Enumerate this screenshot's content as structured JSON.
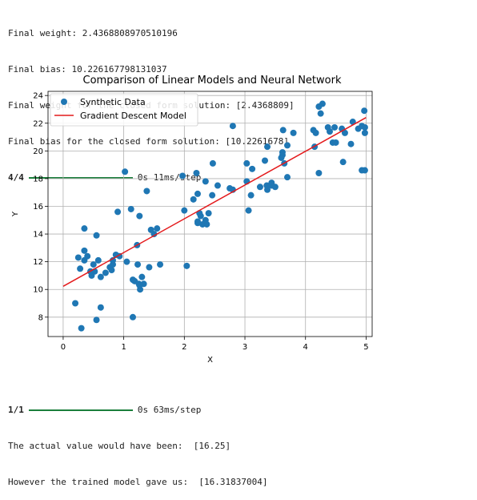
{
  "output_top": {
    "lines": [
      "Final weight: 2.4368808970510196",
      "Final bias: 10.226167798131037",
      "Final weight for the closed form solution: [2.4368809]",
      "Final bias for the closed form solution: [10.2261678]"
    ],
    "progress": {
      "count": "4/4",
      "summary": "0s 11ms/step",
      "fraction": 1.0
    }
  },
  "output_bottom": {
    "progress": {
      "count": "1/1",
      "summary": "0s 63ms/step",
      "fraction": 1.0
    },
    "lines": [
      "The actual value would have been:  [16.25]",
      "However the trained model gave us:  [16.31837004]"
    ]
  },
  "colors": {
    "scatter": "#1f77b4",
    "line": "#e41a1c",
    "progress": "#1b7f3b"
  },
  "chart_data": {
    "type": "scatter",
    "title": "Comparison of Linear Models and Neural Network",
    "xlabel": "X",
    "ylabel": "Y",
    "xlim": [
      -0.25,
      5.1
    ],
    "ylim": [
      6.6,
      24.3
    ],
    "xticks": [
      0,
      1,
      2,
      3,
      4,
      5
    ],
    "yticks": [
      8,
      10,
      12,
      14,
      16,
      18,
      20,
      22,
      24
    ],
    "grid": true,
    "legend_position": "top-left",
    "series": [
      {
        "name": "Synthetic Data",
        "type": "scatter",
        "x": [
          0.2,
          0.3,
          0.35,
          0.4,
          0.35,
          0.25,
          0.47,
          0.5,
          0.55,
          0.58,
          0.52,
          0.62,
          0.7,
          0.77,
          0.8,
          0.82,
          0.82,
          0.9,
          0.93,
          0.45,
          0.28,
          0.55,
          0.62,
          0.35,
          0.87,
          1.02,
          1.12,
          1.15,
          1.18,
          1.22,
          1.23,
          1.25,
          1.26,
          1.27,
          1.3,
          1.33,
          1.38,
          1.42,
          1.45,
          1.5,
          1.6,
          1.55,
          1.05,
          1.15,
          1.26,
          1.97,
          2.0,
          2.04,
          2.15,
          2.2,
          2.22,
          2.22,
          2.25,
          2.27,
          2.3,
          2.35,
          2.37,
          2.4,
          2.47,
          2.55,
          2.75,
          2.8,
          2.8,
          3.03,
          3.06,
          3.1,
          3.12,
          3.25,
          3.33,
          3.37,
          3.37,
          3.44,
          3.44,
          3.5,
          3.6,
          3.62,
          3.63,
          3.65,
          3.7,
          3.7,
          3.8,
          3.62,
          3.36,
          3.03,
          2.35,
          2.46,
          2.22,
          4.13,
          4.17,
          4.22,
          4.25,
          4.28,
          4.37,
          4.45,
          4.48,
          4.6,
          4.62,
          4.75,
          4.78,
          4.87,
          4.93,
          4.97,
          4.98,
          4.98,
          4.98,
          4.93,
          4.4,
          4.22,
          4.5,
          4.65,
          4.15
        ],
        "y": [
          9.0,
          7.2,
          12.8,
          12.4,
          14.4,
          12.3,
          11.0,
          11.8,
          13.9,
          12.1,
          11.3,
          8.7,
          11.2,
          11.6,
          11.4,
          11.8,
          12.1,
          15.6,
          12.4,
          11.3,
          11.5,
          7.8,
          10.9,
          12.1,
          12.5,
          18.5,
          15.8,
          8.0,
          10.6,
          13.2,
          11.8,
          10.4,
          15.3,
          10.0,
          10.9,
          10.4,
          17.1,
          11.6,
          14.3,
          14.0,
          11.8,
          14.4,
          12.0,
          10.7,
          10.3,
          18.2,
          15.7,
          11.7,
          16.5,
          18.4,
          16.9,
          14.8,
          15.5,
          15.3,
          14.7,
          17.8,
          14.7,
          15.5,
          19.1,
          17.5,
          17.3,
          17.2,
          21.8,
          19.1,
          15.7,
          16.8,
          18.7,
          17.4,
          19.3,
          20.3,
          17.2,
          17.7,
          17.5,
          17.4,
          19.5,
          19.9,
          21.5,
          19.1,
          20.4,
          18.1,
          21.3,
          19.7,
          17.5,
          17.8,
          15.0,
          16.8,
          14.9,
          21.5,
          21.3,
          23.2,
          22.7,
          23.4,
          21.7,
          20.6,
          21.7,
          21.6,
          19.2,
          20.5,
          22.1,
          21.6,
          21.8,
          22.9,
          21.7,
          18.6,
          21.3,
          18.6,
          21.4,
          18.4,
          20.6,
          21.3,
          20.3
        ]
      },
      {
        "name": "Gradient Descent Model",
        "type": "line",
        "x": [
          0,
          5
        ],
        "y": [
          10.226,
          22.41
        ]
      }
    ]
  }
}
